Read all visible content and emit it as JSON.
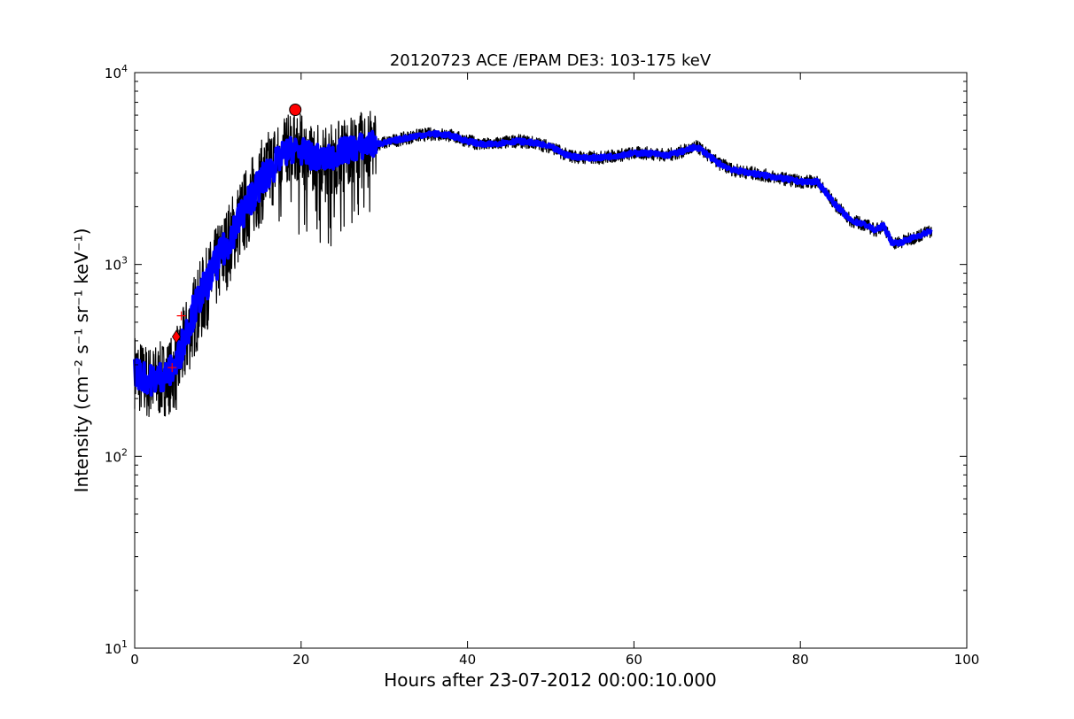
{
  "chart_data": {
    "type": "line",
    "title": "20120723 ACE /EPAM DE3: 103-175 keV",
    "xlabel": "Hours after 23-07-2012 00:00:10.000",
    "ylabel": "Intensity (cm⁻² s⁻¹ sr⁻¹ keV⁻¹)",
    "yscale": "log",
    "xlim": [
      0,
      100
    ],
    "ylim": [
      10,
      10000
    ],
    "x_ticks": [
      0,
      20,
      40,
      60,
      80,
      100
    ],
    "x_tick_labels": [
      "0",
      "20",
      "40",
      "60",
      "80",
      "100"
    ],
    "y_ticks": [
      10,
      100,
      1000,
      10000
    ],
    "y_tick_labels": [
      {
        "base": "10",
        "exp": "1"
      },
      {
        "base": "10",
        "exp": "2"
      },
      {
        "base": "10",
        "exp": "3"
      },
      {
        "base": "10",
        "exp": "4"
      }
    ],
    "grid": false,
    "legend": "none",
    "series": [
      {
        "color": "#000000",
        "style": "noisy raw data line",
        "x": [
          0,
          1,
          2,
          3,
          4,
          5,
          6,
          7,
          8,
          9,
          10,
          11,
          12,
          13,
          14,
          15,
          16,
          17,
          18,
          19,
          20,
          21,
          22,
          23,
          24,
          25,
          26,
          27,
          28,
          30,
          32,
          34,
          36,
          38,
          40,
          42,
          44,
          46,
          48,
          50,
          52,
          54,
          56,
          58,
          60,
          62,
          64,
          66,
          67.5,
          68,
          70,
          72,
          74,
          76,
          78,
          80,
          82,
          83,
          84,
          86,
          88,
          89,
          90,
          91,
          92,
          94,
          95.8
        ],
        "y": [
          280,
          250,
          240,
          250,
          260,
          280,
          380,
          520,
          650,
          800,
          1000,
          1200,
          1500,
          1800,
          2200,
          2600,
          3000,
          3500,
          3900,
          4200,
          4000,
          3700,
          3600,
          3500,
          3700,
          3900,
          4000,
          4100,
          4200,
          4300,
          4500,
          4700,
          4800,
          4700,
          4400,
          4200,
          4300,
          4400,
          4300,
          4100,
          3700,
          3600,
          3600,
          3700,
          3800,
          3800,
          3700,
          3900,
          4100,
          4000,
          3400,
          3100,
          3000,
          2900,
          2800,
          2700,
          2700,
          2400,
          2100,
          1700,
          1600,
          1500,
          1600,
          1300,
          1300,
          1400,
          1500
        ]
      },
      {
        "color": "#0000ff",
        "style": "smoothed thick line",
        "x": [
          0,
          1,
          2,
          3,
          4,
          5,
          6,
          7,
          8,
          9,
          10,
          11,
          12,
          13,
          14,
          15,
          16,
          17,
          18,
          19,
          20,
          21,
          22,
          23,
          24,
          25,
          26,
          27,
          28,
          30,
          32,
          34,
          36,
          38,
          40,
          42,
          44,
          46,
          48,
          50,
          52,
          54,
          56,
          58,
          60,
          62,
          64,
          66,
          67.5,
          68,
          70,
          72,
          74,
          76,
          78,
          80,
          82,
          83,
          84,
          86,
          88,
          89,
          90,
          91,
          92,
          94,
          95.8
        ],
        "y": [
          280,
          260,
          250,
          260,
          270,
          300,
          420,
          560,
          700,
          850,
          1050,
          1250,
          1550,
          1850,
          2250,
          2600,
          3000,
          3400,
          3800,
          4000,
          3900,
          3700,
          3600,
          3500,
          3700,
          3900,
          4000,
          4100,
          4200,
          4300,
          4500,
          4700,
          4800,
          4700,
          4400,
          4200,
          4300,
          4400,
          4300,
          4100,
          3700,
          3600,
          3600,
          3700,
          3800,
          3800,
          3700,
          3900,
          4100,
          4000,
          3400,
          3100,
          3000,
          2900,
          2800,
          2700,
          2700,
          2400,
          2100,
          1700,
          1600,
          1500,
          1600,
          1300,
          1300,
          1400,
          1500
        ]
      }
    ],
    "markers": [
      {
        "shape": "circle",
        "color": "#ff0000",
        "x": 19.3,
        "y": 6400
      },
      {
        "shape": "diamond",
        "color": "#ff0000",
        "x": 5.0,
        "y": 420
      },
      {
        "shape": "plus",
        "color": "#ff0000",
        "x": 5.6,
        "y": 540
      },
      {
        "shape": "plus",
        "color": "#ff0000",
        "x": 4.5,
        "y": 290
      }
    ]
  }
}
